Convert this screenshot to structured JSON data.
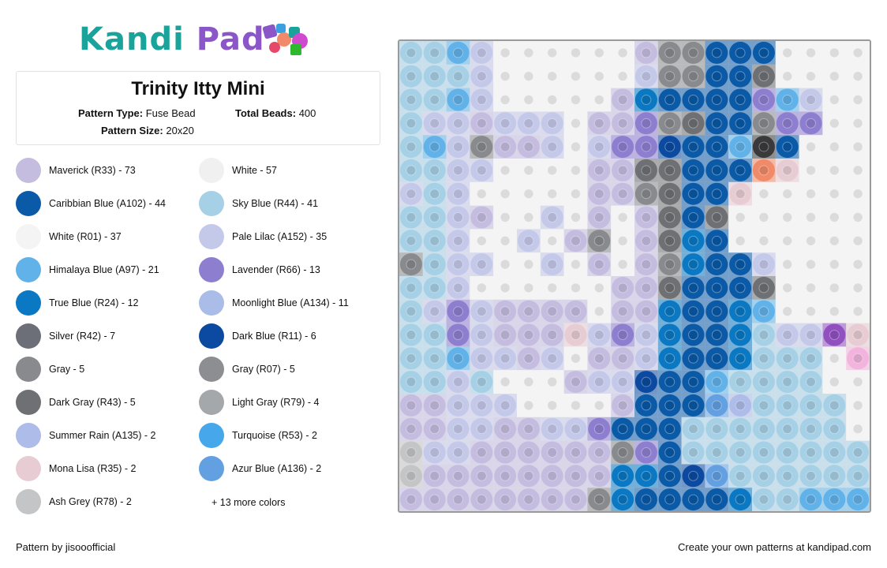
{
  "brand": {
    "logo_part1": "Kandi",
    "logo_part2": "Pad",
    "color_primary": "#1aa39a",
    "color_secondary": "#8a56c8"
  },
  "pattern": {
    "title": "Trinity Itty Mini",
    "type_label": "Pattern Type:",
    "type_value": "Fuse Bead",
    "total_label": "Total Beads:",
    "total_value": "400",
    "size_label": "Pattern Size:",
    "size_value": "20x20"
  },
  "legend": {
    "left": [
      {
        "label": "Maverick (R33) - 73",
        "color": "#c5bde0"
      },
      {
        "label": "Caribbian Blue (A102) - 44",
        "color": "#0a5aa8"
      },
      {
        "label": "White (R01) - 37",
        "color": "#f4f4f4"
      },
      {
        "label": "Himalaya Blue (A97) - 21",
        "color": "#60b2e8"
      },
      {
        "label": "True Blue (R24) - 12",
        "color": "#0a78c2"
      },
      {
        "label": "Silver (R42) - 7",
        "color": "#6c6e78"
      },
      {
        "label": "Gray - 5",
        "color": "#888a8e"
      },
      {
        "label": "Dark Gray (R43) - 5",
        "color": "#6e7073"
      },
      {
        "label": "Summer Rain (A135) - 2",
        "color": "#adbce8"
      },
      {
        "label": "Mona Lisa (R35) - 2",
        "color": "#e8ccd4"
      },
      {
        "label": "Ash Grey (R78) - 2",
        "color": "#c4c5c6"
      }
    ],
    "right": [
      {
        "label": "White - 57",
        "color": "#f0f0f0"
      },
      {
        "label": "Sky Blue (R44) - 41",
        "color": "#a6d0e6"
      },
      {
        "label": "Pale Lilac (A152) - 35",
        "color": "#c4c9ea"
      },
      {
        "label": "Lavender (R66) - 13",
        "color": "#8e7ed0"
      },
      {
        "label": "Moonlight Blue (A134) - 11",
        "color": "#a9bde8"
      },
      {
        "label": "Dark Blue (R11) - 6",
        "color": "#0b4aa0"
      },
      {
        "label": "Gray (R07) - 5",
        "color": "#8d8e92"
      },
      {
        "label": "Light Gray (R79) - 4",
        "color": "#a5a8aa"
      },
      {
        "label": "Turquoise (R53) - 2",
        "color": "#46a8ea"
      },
      {
        "label": "Azur Blue (A136) - 2",
        "color": "#62a0e2"
      }
    ],
    "more_colors": "+ 13 more colors"
  },
  "grid": {
    "palette": {
      "W": "#f4f4f4",
      "M": "#c5bde0",
      "S": "#a6d0e6",
      "P": "#c4c9ea",
      "L": "#8e7ed0",
      "B": "#0a5aa8",
      "D": "#0b4aa0",
      "H": "#60b2e8",
      "T": "#0a78c2",
      "G": "#888a8e",
      "K": "#6e7073",
      "R": "#adbce8",
      "A": "#c4c5c6",
      "Q": "#46a8ea",
      "O": "#f08a68",
      "N": "#f2b2b8",
      "Z": "#3a3a3c",
      "V": "#9050c0",
      "I": "#f2b4dc",
      "U": "#e8ccd4",
      "C": "#62a0e2"
    },
    "rows": [
      "SSHPWWWWWWMGGBBBWWWW",
      "SSSPWWWWWWPGGBBKWWWW",
      "SSHPWWWWWMTBBBBLHPWW",
      "SPPMPPPWMMLGKBBGLLWW",
      "SHPGMMPWPLLDBBHZBWWW",
      "SSPPWWWWMMKKBBBOUWWW",
      "PSPWWWWWMMGKBBUWWWWW",
      "SSPMWWPWMWMKBKWWWWWW",
      "SSPWWPWMGWMKTBWWWWWW",
      "GSPPWWPWMWMGTBBPWWWW",
      "SSPWWWWWWMMKBBBKWWWW",
      "SPLPMMMMWMMTBBTHWWWW",
      "SSLPMMMUPLPTBBTSPPVU",
      "SSHPPMPWMMPTBBTSSSWI",
      "SSPSWWWMPPDBBHSSSSWW",
      "MMPPPWWWWMBBBCRSSSSW",
      "MMPPMMPPLBBBSSSSSSSW",
      "APPMMMMMMGLBSSSSSSSS",
      "AMMMMMMMMTTBDCSSSSSS",
      "MMMMMMMMGTBBBBTSSHHH"
    ]
  },
  "footer": {
    "credit": "Pattern by jisooofficial",
    "cta": "Create your own patterns at kandipad.com"
  }
}
